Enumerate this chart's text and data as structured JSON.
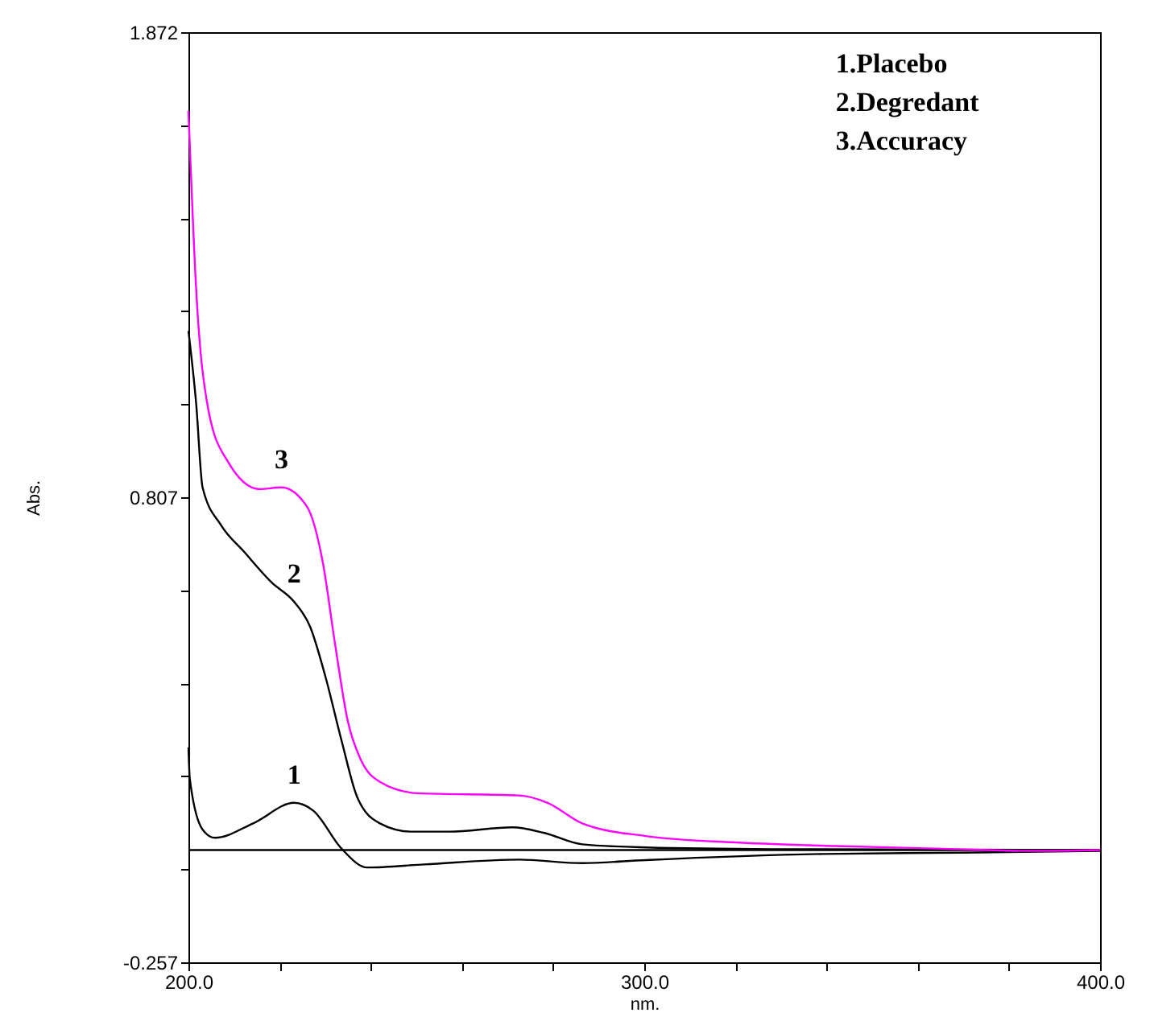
{
  "chart_data": {
    "type": "line",
    "xlabel": "nm.",
    "ylabel": "Abs.",
    "xlim": [
      200,
      400
    ],
    "ylim": [
      -0.257,
      1.872
    ],
    "xticks": [
      {
        "value": 200,
        "label": "200.0"
      },
      {
        "value": 220,
        "label": null
      },
      {
        "value": 240,
        "label": null
      },
      {
        "value": 260,
        "label": null
      },
      {
        "value": 280,
        "label": null
      },
      {
        "value": 300,
        "label": "300.0"
      },
      {
        "value": 320,
        "label": null
      },
      {
        "value": 340,
        "label": null
      },
      {
        "value": 360,
        "label": null
      },
      {
        "value": 380,
        "label": null
      },
      {
        "value": 400,
        "label": "400.0"
      }
    ],
    "yticks": [
      -0.257,
      {
        "value": -0.044,
        "label": null
      },
      {
        "value": 0.169,
        "label": null
      },
      {
        "value": 0.382,
        "label": null
      },
      {
        "value": 0.595,
        "label": null
      },
      0.807,
      {
        "value": 1.02,
        "label": null
      },
      {
        "value": 1.233,
        "label": null
      },
      {
        "value": 1.446,
        "label": null
      },
      {
        "value": 1.659,
        "label": null
      },
      1.872
    ],
    "grid": false,
    "marker": "none",
    "line_style": "solid",
    "ref_lines": [
      {
        "axis": "y",
        "value": 0,
        "color": "#000000"
      }
    ],
    "series": [
      {
        "name": "1",
        "color": "#000000",
        "x": [
          200,
          200.3,
          203.1,
          205.8,
          214.2,
          223.2,
          227.4,
          233.6,
          239.2,
          251.7,
          272.5,
          286.4,
          300.3,
          339.2,
          369.7,
          400
        ],
        "values": [
          0.235,
          0.163,
          0.047,
          0.028,
          0.061,
          0.108,
          0.09,
          0.003,
          -0.04,
          -0.033,
          -0.022,
          -0.03,
          -0.023,
          -0.009,
          -0.006,
          -0.002
        ]
      },
      {
        "name": "2",
        "color": "#000000",
        "x": [
          200,
          201.7,
          203.1,
          207.2,
          212.1,
          218.3,
          223.2,
          226.7,
          230.1,
          233.6,
          237.1,
          242,
          248.9,
          257.2,
          271.1,
          278.1,
          286.4,
          300.3,
          328,
          400
        ],
        "values": [
          1.188,
          1.021,
          0.83,
          0.743,
          0.684,
          0.612,
          0.568,
          0.511,
          0.395,
          0.25,
          0.119,
          0.061,
          0.042,
          0.042,
          0.052,
          0.039,
          0.013,
          0.006,
          0.002,
          0
        ]
      },
      {
        "name": "3",
        "color": "#ff00ff",
        "x": [
          200,
          201.7,
          204.4,
          208.6,
          215.6,
          220.4,
          226,
          229.5,
          232.2,
          235,
          237.8,
          242,
          250.3,
          272.5,
          278.8,
          286.4,
          300.3,
          321,
          342,
          365.5,
          385,
          400
        ],
        "values": [
          1.692,
          1.283,
          1.006,
          0.89,
          0.826,
          0.83,
          0.786,
          0.657,
          0.469,
          0.293,
          0.207,
          0.156,
          0.13,
          0.125,
          0.108,
          0.061,
          0.032,
          0.017,
          0.009,
          0.003,
          -0.002,
          0
        ]
      }
    ],
    "annotations": [
      "1.Placebo",
      "2.Degredant",
      "3.Accuracy"
    ]
  }
}
